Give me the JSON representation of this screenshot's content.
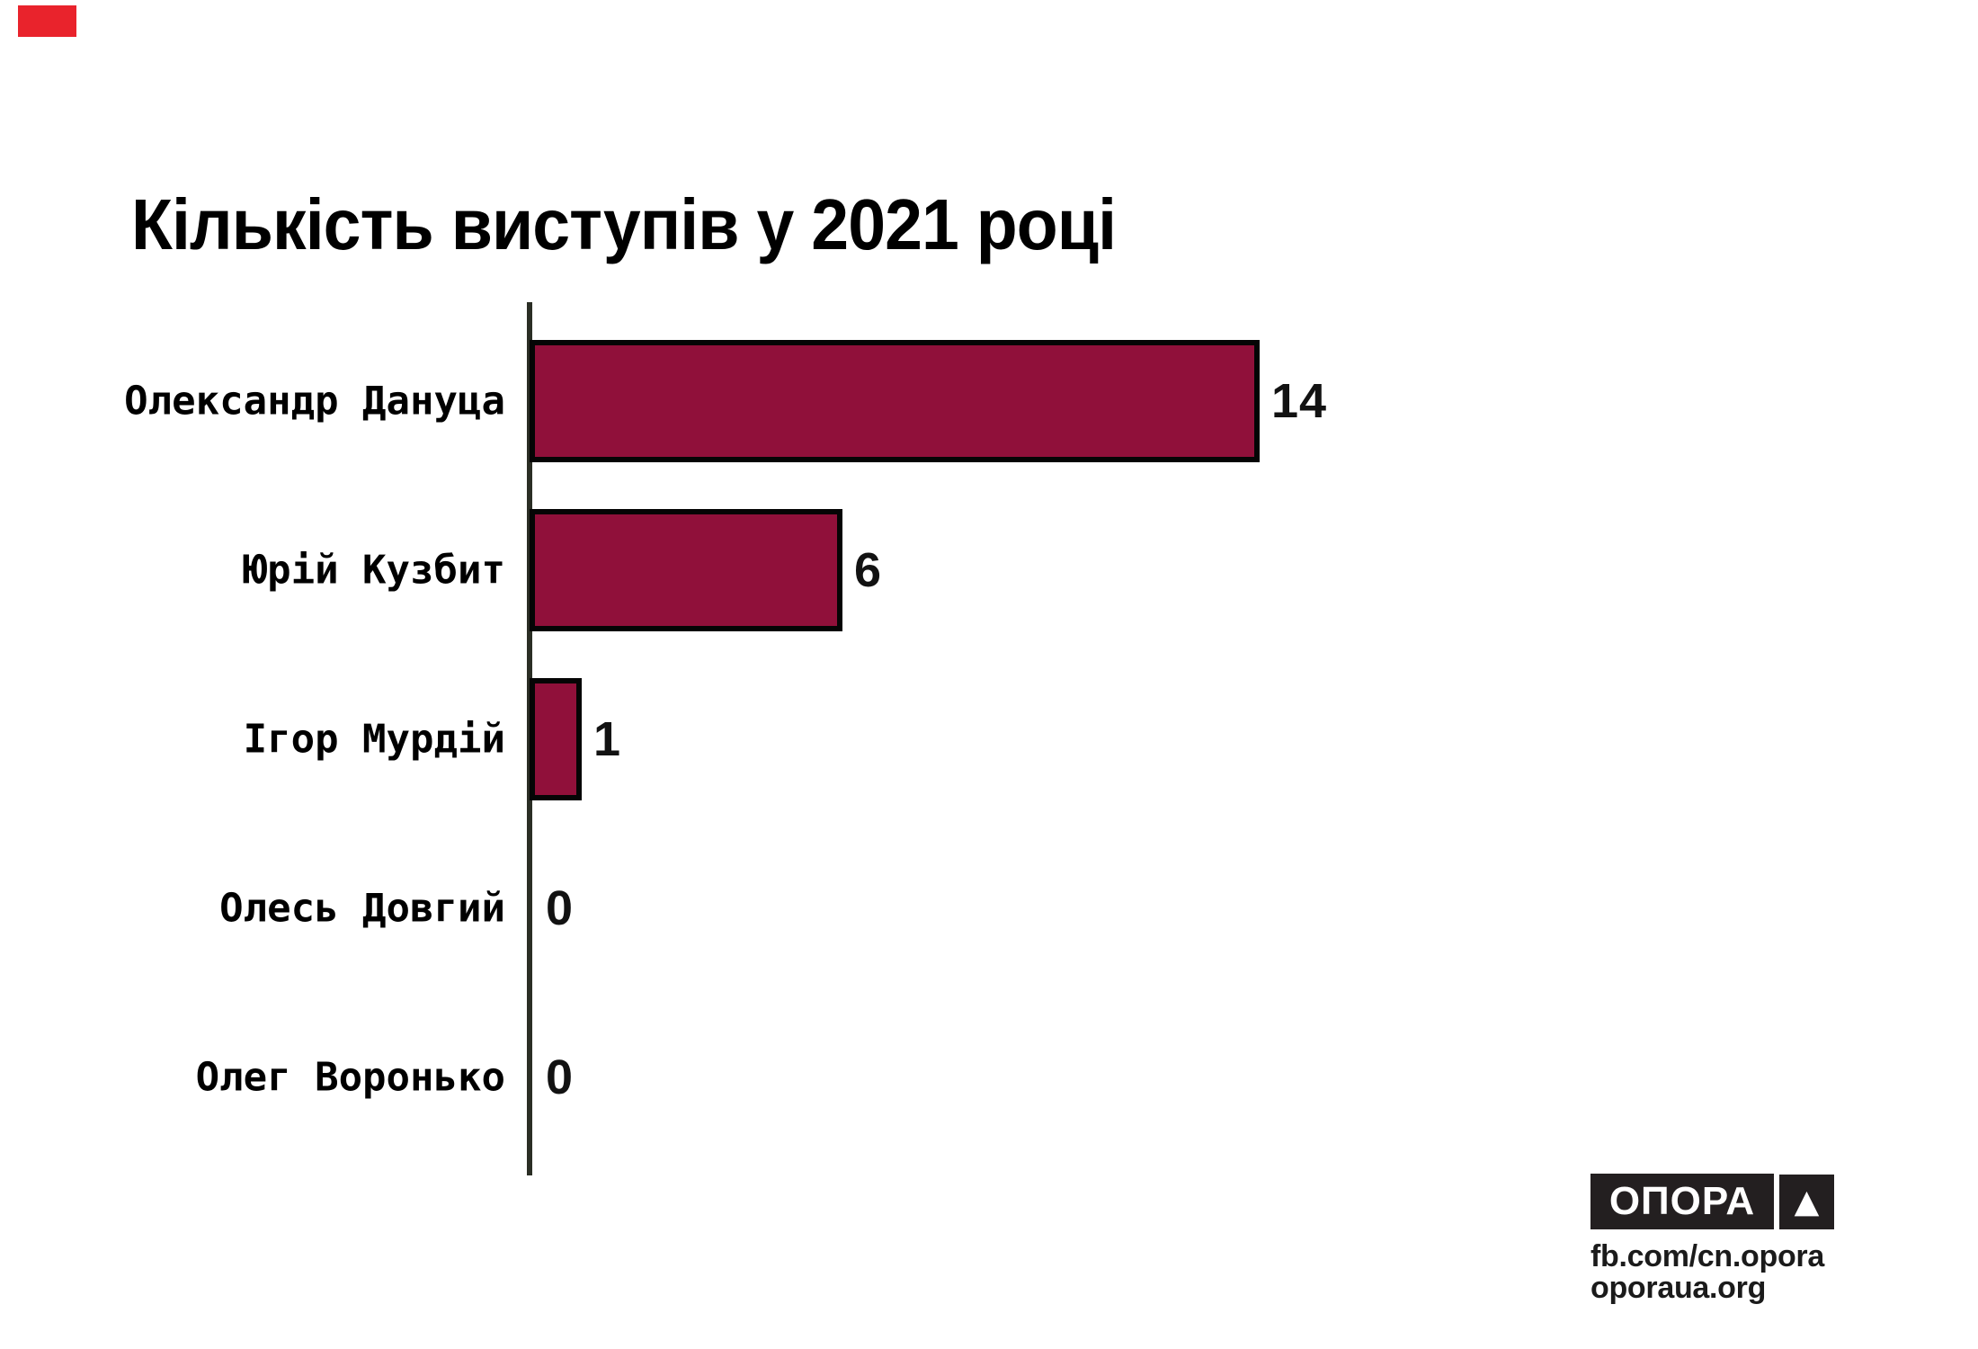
{
  "title": "Кількість виступів у 2021 році",
  "colors": {
    "bar": "#90103a",
    "bar_border": "#050505",
    "axis": "#2b2e25",
    "corner_mark": "#e9232c",
    "logo_bg": "#231f20",
    "logo_text": "#ffffff",
    "link_text": "#1b1b1b"
  },
  "chart_data": {
    "type": "bar",
    "orientation": "horizontal",
    "title": "Кількість виступів у 2021 році",
    "categories": [
      "Олександр Дануца",
      "Юрій Кузбит",
      "Ігор Мурдій",
      "Олесь Довгий",
      "Олег Воронько"
    ],
    "values": [
      14,
      6,
      1,
      0,
      0
    ],
    "xlim": [
      0,
      14
    ],
    "grid": false,
    "data_labels": true,
    "legend": "none"
  },
  "footer": {
    "logo_text": "ОПОРА",
    "logo_triangle": "▲",
    "link1": "fb.com/cn.opora",
    "link2": "oporaua.org"
  }
}
